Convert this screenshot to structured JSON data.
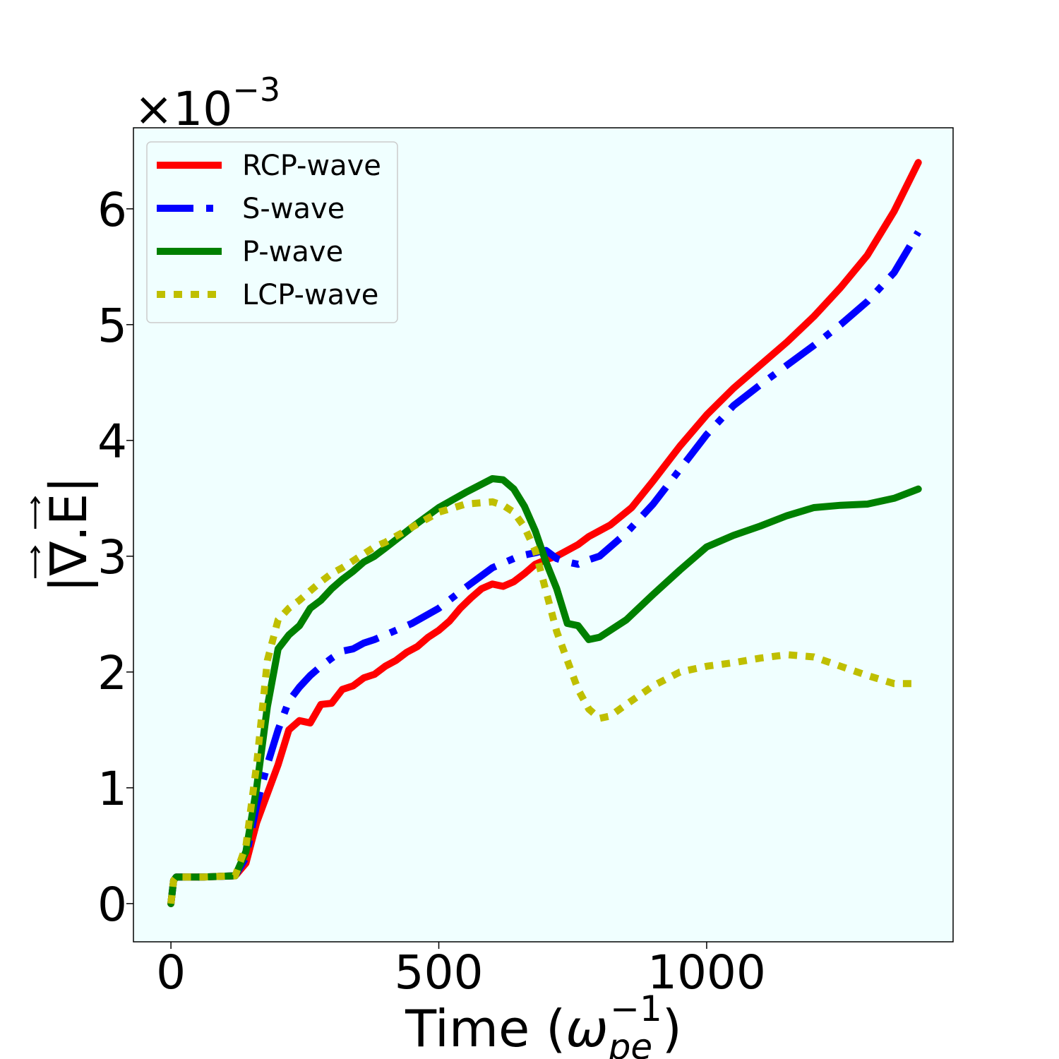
{
  "chart_data": {
    "type": "line",
    "xlabel": "Time",
    "xlabel_unit_base": "ω",
    "xlabel_unit_sub": "pe",
    "xlabel_unit_sup": "−1",
    "ylabel": "|∇.E|",
    "y_scale_text": "×10",
    "y_scale_exp": "−3",
    "xlim": [
      -70,
      1460
    ],
    "ylim": [
      -0.33,
      6.7
    ],
    "xticks": [
      0,
      500,
      1000
    ],
    "xtick_labels": [
      "0",
      "500",
      "1000"
    ],
    "yticks": [
      0,
      1,
      2,
      3,
      4,
      5,
      6
    ],
    "ytick_labels": [
      "0",
      "1",
      "2",
      "3",
      "4",
      "5",
      "6"
    ],
    "plot_background": "#f0ffff",
    "grid": false,
    "legend_position": "top-left",
    "series": [
      {
        "name": "RCP-wave",
        "color": "#ff0000",
        "style": "solid",
        "x": [
          0,
          5,
          10,
          60,
          120,
          140,
          160,
          180,
          200,
          220,
          240,
          260,
          280,
          300,
          320,
          340,
          360,
          380,
          400,
          420,
          440,
          460,
          480,
          500,
          520,
          540,
          560,
          580,
          600,
          620,
          640,
          660,
          680,
          700,
          720,
          740,
          760,
          780,
          800,
          820,
          860,
          900,
          950,
          1000,
          1050,
          1100,
          1150,
          1200,
          1250,
          1300,
          1350,
          1395
        ],
        "y": [
          0,
          0.2,
          0.23,
          0.23,
          0.24,
          0.35,
          0.7,
          0.95,
          1.2,
          1.5,
          1.58,
          1.56,
          1.72,
          1.73,
          1.85,
          1.88,
          1.95,
          1.98,
          2.05,
          2.1,
          2.17,
          2.22,
          2.3,
          2.36,
          2.44,
          2.55,
          2.64,
          2.72,
          2.76,
          2.74,
          2.78,
          2.85,
          2.93,
          2.97,
          3.0,
          3.05,
          3.1,
          3.17,
          3.22,
          3.27,
          3.42,
          3.65,
          3.95,
          4.22,
          4.45,
          4.65,
          4.85,
          5.07,
          5.32,
          5.6,
          5.98,
          6.4
        ]
      },
      {
        "name": "S-wave",
        "color": "#0000ff",
        "style": "dashdot",
        "x": [
          0,
          5,
          10,
          60,
          120,
          140,
          160,
          180,
          200,
          220,
          240,
          260,
          280,
          300,
          320,
          340,
          360,
          380,
          400,
          450,
          500,
          550,
          600,
          650,
          700,
          720,
          740,
          760,
          780,
          800,
          850,
          900,
          950,
          1000,
          1050,
          1100,
          1150,
          1200,
          1250,
          1300,
          1350,
          1395
        ],
        "y": [
          0,
          0.2,
          0.23,
          0.23,
          0.24,
          0.4,
          0.85,
          1.2,
          1.5,
          1.75,
          1.87,
          1.97,
          2.05,
          2.12,
          2.18,
          2.2,
          2.25,
          2.28,
          2.32,
          2.42,
          2.55,
          2.73,
          2.9,
          3.0,
          3.05,
          2.98,
          2.95,
          2.93,
          2.97,
          3.0,
          3.2,
          3.45,
          3.75,
          4.05,
          4.3,
          4.48,
          4.65,
          4.82,
          5.0,
          5.2,
          5.45,
          5.8
        ]
      },
      {
        "name": "P-wave",
        "color": "#008000",
        "style": "solid",
        "x": [
          0,
          5,
          10,
          60,
          120,
          140,
          160,
          180,
          200,
          220,
          240,
          260,
          280,
          300,
          320,
          340,
          360,
          380,
          400,
          450,
          500,
          550,
          600,
          620,
          640,
          660,
          680,
          700,
          720,
          740,
          760,
          780,
          800,
          850,
          900,
          950,
          1000,
          1050,
          1100,
          1150,
          1200,
          1250,
          1300,
          1350,
          1395
        ],
        "y": [
          0,
          0.2,
          0.23,
          0.23,
          0.24,
          0.45,
          1.0,
          1.7,
          2.2,
          2.32,
          2.4,
          2.55,
          2.62,
          2.72,
          2.8,
          2.87,
          2.95,
          3.0,
          3.07,
          3.25,
          3.42,
          3.55,
          3.67,
          3.66,
          3.58,
          3.43,
          3.22,
          2.95,
          2.72,
          2.42,
          2.4,
          2.28,
          2.3,
          2.45,
          2.67,
          2.88,
          3.08,
          3.18,
          3.26,
          3.35,
          3.42,
          3.44,
          3.45,
          3.5,
          3.58
        ]
      },
      {
        "name": "LCP-wave",
        "color": "#bfbf00",
        "style": "dotted",
        "x": [
          0,
          5,
          10,
          60,
          120,
          140,
          160,
          180,
          200,
          220,
          240,
          260,
          280,
          300,
          320,
          340,
          360,
          380,
          400,
          450,
          500,
          550,
          600,
          620,
          640,
          660,
          680,
          700,
          720,
          740,
          760,
          780,
          800,
          820,
          850,
          900,
          950,
          1000,
          1050,
          1100,
          1150,
          1200,
          1250,
          1300,
          1350,
          1395
        ],
        "y": [
          0,
          0.2,
          0.23,
          0.23,
          0.24,
          0.5,
          1.2,
          2.1,
          2.45,
          2.55,
          2.62,
          2.7,
          2.78,
          2.85,
          2.9,
          2.96,
          3.02,
          3.08,
          3.12,
          3.25,
          3.38,
          3.45,
          3.47,
          3.44,
          3.38,
          3.25,
          3.05,
          2.7,
          2.35,
          2.1,
          1.85,
          1.68,
          1.6,
          1.62,
          1.72,
          1.88,
          2.0,
          2.05,
          2.08,
          2.12,
          2.15,
          2.13,
          2.05,
          1.97,
          1.9,
          1.9
        ]
      }
    ]
  }
}
